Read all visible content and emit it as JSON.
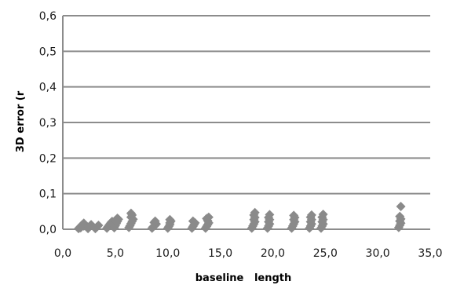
{
  "chart_data": {
    "type": "scatter",
    "title": "",
    "xlabel": "baseline   length",
    "ylabel": "3D error (r",
    "xlim": [
      0,
      35
    ],
    "ylim": [
      0,
      0.6
    ],
    "x_ticks": [
      {
        "value": 0,
        "label": "0,0"
      },
      {
        "value": 5,
        "label": "5,0"
      },
      {
        "value": 10,
        "label": "10,0"
      },
      {
        "value": 15,
        "label": "15,0"
      },
      {
        "value": 20,
        "label": "20,0"
      },
      {
        "value": 25,
        "label": "25,0"
      },
      {
        "value": 30,
        "label": "30,0"
      },
      {
        "value": 35,
        "label": "35,0"
      }
    ],
    "y_ticks": [
      {
        "value": 0,
        "label": "0,0"
      },
      {
        "value": 0.1,
        "label": "0,1"
      },
      {
        "value": 0.2,
        "label": "0,2"
      },
      {
        "value": 0.3,
        "label": "0,3"
      },
      {
        "value": 0.4,
        "label": "0,4"
      },
      {
        "value": 0.5,
        "label": "0,5"
      },
      {
        "value": 0.6,
        "label": "0,6"
      }
    ],
    "grid": "horizontal",
    "marker": "diamond",
    "marker_color": "#8a8a8a",
    "gridline_color": "#8c8c8c",
    "series": [
      {
        "points": [
          [
            1.5,
            0.002
          ],
          [
            1.6,
            0.005
          ],
          [
            1.7,
            0.008
          ],
          [
            1.8,
            0.011
          ],
          [
            1.9,
            0.014
          ],
          [
            2.0,
            0.017
          ],
          [
            1.7,
            0.004
          ],
          [
            2.0,
            0.009
          ],
          [
            2.4,
            0.002
          ],
          [
            2.5,
            0.006
          ],
          [
            2.6,
            0.01
          ],
          [
            2.7,
            0.013
          ],
          [
            3.1,
            0.002
          ],
          [
            3.2,
            0.005
          ],
          [
            3.3,
            0.008
          ],
          [
            3.4,
            0.011
          ],
          [
            4.2,
            0.003
          ],
          [
            4.3,
            0.007
          ],
          [
            4.4,
            0.011
          ],
          [
            4.5,
            0.015
          ],
          [
            4.6,
            0.019
          ],
          [
            4.7,
            0.022
          ],
          [
            4.9,
            0.004
          ],
          [
            5.0,
            0.01
          ],
          [
            5.1,
            0.016
          ],
          [
            5.2,
            0.022
          ],
          [
            5.3,
            0.028
          ],
          [
            5.0,
            0.025
          ],
          [
            5.2,
            0.031
          ],
          [
            6.3,
            0.005
          ],
          [
            6.4,
            0.01
          ],
          [
            6.5,
            0.016
          ],
          [
            6.6,
            0.022
          ],
          [
            6.7,
            0.028
          ],
          [
            6.5,
            0.034
          ],
          [
            6.6,
            0.04
          ],
          [
            6.5,
            0.045
          ],
          [
            8.5,
            0.003
          ],
          [
            8.6,
            0.007
          ],
          [
            8.8,
            0.011
          ],
          [
            8.9,
            0.015
          ],
          [
            8.7,
            0.019
          ],
          [
            8.8,
            0.023
          ],
          [
            10.0,
            0.003
          ],
          [
            10.1,
            0.008
          ],
          [
            10.2,
            0.013
          ],
          [
            10.2,
            0.018
          ],
          [
            10.3,
            0.023
          ],
          [
            10.2,
            0.027
          ],
          [
            12.3,
            0.003
          ],
          [
            12.4,
            0.008
          ],
          [
            12.5,
            0.013
          ],
          [
            12.6,
            0.018
          ],
          [
            12.4,
            0.023
          ],
          [
            13.6,
            0.003
          ],
          [
            13.7,
            0.008
          ],
          [
            13.8,
            0.013
          ],
          [
            13.9,
            0.018
          ],
          [
            13.8,
            0.024
          ],
          [
            13.7,
            0.03
          ],
          [
            13.9,
            0.034
          ],
          [
            18.0,
            0.003
          ],
          [
            18.1,
            0.009
          ],
          [
            18.2,
            0.015
          ],
          [
            18.3,
            0.021
          ],
          [
            18.2,
            0.027
          ],
          [
            18.3,
            0.033
          ],
          [
            18.2,
            0.04
          ],
          [
            18.3,
            0.047
          ],
          [
            19.5,
            0.003
          ],
          [
            19.6,
            0.009
          ],
          [
            19.7,
            0.015
          ],
          [
            19.6,
            0.021
          ],
          [
            19.7,
            0.027
          ],
          [
            19.6,
            0.033
          ],
          [
            19.7,
            0.041
          ],
          [
            21.8,
            0.003
          ],
          [
            21.9,
            0.009
          ],
          [
            22.0,
            0.015
          ],
          [
            22.1,
            0.021
          ],
          [
            22.0,
            0.027
          ],
          [
            22.1,
            0.033
          ],
          [
            22.0,
            0.039
          ],
          [
            23.5,
            0.003
          ],
          [
            23.6,
            0.009
          ],
          [
            23.7,
            0.015
          ],
          [
            23.6,
            0.021
          ],
          [
            23.7,
            0.027
          ],
          [
            23.6,
            0.034
          ],
          [
            23.7,
            0.04
          ],
          [
            24.6,
            0.003
          ],
          [
            24.7,
            0.009
          ],
          [
            24.8,
            0.015
          ],
          [
            24.7,
            0.021
          ],
          [
            24.8,
            0.027
          ],
          [
            24.7,
            0.034
          ],
          [
            24.8,
            0.042
          ],
          [
            32.0,
            0.005
          ],
          [
            32.1,
            0.011
          ],
          [
            32.2,
            0.017
          ],
          [
            32.1,
            0.023
          ],
          [
            32.2,
            0.029
          ],
          [
            32.1,
            0.036
          ],
          [
            32.2,
            0.064
          ]
        ]
      }
    ]
  }
}
